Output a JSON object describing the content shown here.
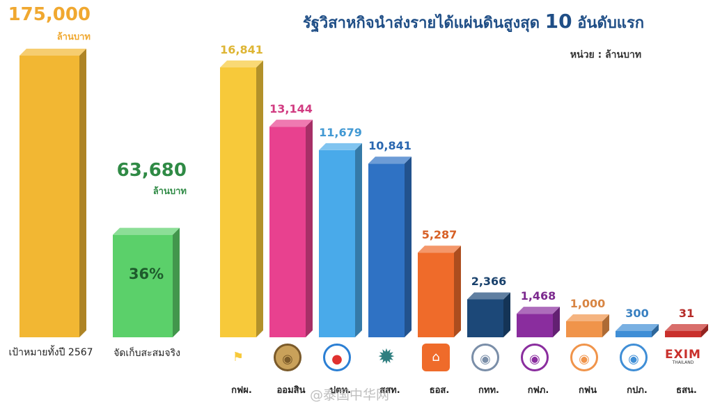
{
  "chart_data": [
    {
      "type": "bar",
      "categories": [
        "เป้าหมายทั้งปี 2567",
        "จัดเก็บสะสมจริง"
      ],
      "values": [
        175000,
        63680
      ],
      "value_labels": [
        "175,000",
        "63,680"
      ],
      "value_unit": "ล้านบาท",
      "percent_label": "36%",
      "colors": [
        "#f2b733",
        "#5bd06a"
      ]
    },
    {
      "type": "bar",
      "title": "รัฐวิสาหกิจนำส่งรายได้แผ่นดินสูงสุด 10 อันดับแรก",
      "unit": "หน่วย : ล้านบาท",
      "categories": [
        "กฟผ.",
        "ออมสิน",
        "ปตท.",
        "สสท.",
        "ธอส.",
        "กทท.",
        "กฟภ.",
        "กฟน",
        "กปภ.",
        "ธสน."
      ],
      "values": [
        16841,
        13144,
        11679,
        10841,
        5287,
        2366,
        1468,
        1000,
        300,
        31
      ],
      "value_labels": [
        "16,841",
        "13,144",
        "11,679",
        "10,841",
        "5,287",
        "2,366",
        "1,468",
        "1,000",
        "300",
        "31"
      ],
      "colors": [
        "#f7c93a",
        "#e8418f",
        "#49aaea",
        "#2f72c4",
        "#ef6b2a",
        "#1c4878",
        "#8a2d9e",
        "#f0944a",
        "#3f8ed6",
        "#c9302c"
      ]
    }
  ],
  "title_parts": {
    "before": "รัฐวิสาหกิจนำส่งรายได้แผ่นดินสูงสุด ",
    "number": "10",
    "after": " อันดับแรก"
  },
  "logo_icons": [
    "thailand-map-icon",
    "gsb-emblem-icon",
    "ptt-flame-icon",
    "star-emblem-icon",
    "ghb-house-icon",
    "port-authority-icon",
    "pea-emblem-icon",
    "mea-emblem-icon",
    "pwa-emblem-icon",
    "exim-logo-icon"
  ],
  "exim_logo": {
    "text": "EXIM",
    "sub": "THAILAND"
  },
  "watermark": "@泰国中华网"
}
